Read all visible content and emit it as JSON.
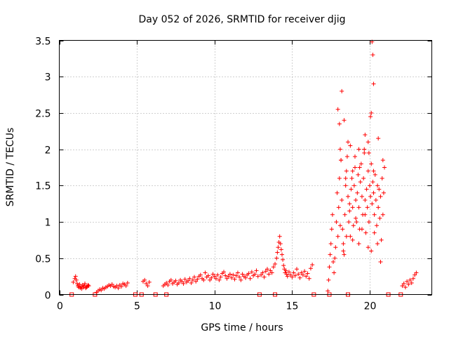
{
  "chart_data": {
    "type": "scatter",
    "title": "Day 052 of 2026, SRMTID for receiver djig",
    "xlabel": "GPS time / hours",
    "ylabel": "SRMTID / TECUs",
    "xlim": [
      0,
      24
    ],
    "ylim": [
      0,
      3.5
    ],
    "xticks": [
      0,
      5,
      10,
      15,
      20
    ],
    "yticks": [
      0,
      0.5,
      1,
      1.5,
      2,
      2.5,
      3,
      3.5
    ],
    "xtick_labels": [
      "0",
      "5",
      "10",
      "15",
      "20"
    ],
    "ytick_labels": [
      "0",
      "0.5",
      "1",
      "1.5",
      "2",
      "2.5",
      "3",
      "3.5"
    ],
    "grid": true,
    "color": "#ff0000",
    "series": [
      {
        "name": "SRMTID",
        "marker": "plus",
        "x": [
          0.9,
          1.0,
          1.05,
          1.1,
          1.15,
          1.2,
          1.25,
          1.3,
          1.35,
          1.4,
          1.45,
          1.5,
          1.55,
          1.6,
          1.65,
          1.7,
          1.75,
          1.8,
          1.85,
          1.9,
          2.4,
          2.5,
          2.6,
          2.7,
          2.8,
          2.9,
          3.0,
          3.1,
          3.2,
          3.3,
          3.4,
          3.5,
          3.6,
          3.7,
          3.8,
          3.9,
          4.0,
          4.1,
          4.2,
          4.3,
          4.4,
          5.4,
          5.5,
          5.6,
          5.7,
          5.8,
          6.7,
          6.8,
          6.9,
          7.0,
          7.1,
          7.2,
          7.3,
          7.4,
          7.5,
          7.6,
          7.7,
          7.8,
          7.9,
          8.0,
          8.1,
          8.2,
          8.3,
          8.4,
          8.5,
          8.6,
          8.7,
          8.8,
          8.9,
          9.0,
          9.1,
          9.2,
          9.3,
          9.4,
          9.5,
          9.6,
          9.7,
          9.8,
          9.9,
          10.0,
          10.1,
          10.2,
          10.3,
          10.4,
          10.5,
          10.6,
          10.7,
          10.8,
          10.9,
          11.0,
          11.1,
          11.2,
          11.3,
          11.4,
          11.5,
          11.6,
          11.7,
          11.8,
          11.9,
          12.0,
          12.1,
          12.2,
          12.3,
          12.4,
          12.5,
          12.6,
          12.7,
          12.8,
          13.0,
          13.1,
          13.2,
          13.3,
          13.4,
          13.5,
          13.6,
          13.7,
          13.8,
          13.9,
          14.0,
          14.05,
          14.1,
          14.15,
          14.2,
          14.25,
          14.3,
          14.35,
          14.4,
          14.45,
          14.5,
          14.55,
          14.6,
          14.65,
          14.7,
          14.8,
          14.9,
          15.0,
          15.1,
          15.2,
          15.3,
          15.4,
          15.5,
          15.6,
          15.7,
          15.8,
          15.9,
          16.0,
          16.1,
          16.2,
          16.3,
          17.3,
          17.35,
          17.4,
          17.45,
          17.5,
          17.55,
          17.6,
          17.65,
          17.7,
          17.75,
          17.8,
          17.85,
          17.9,
          17.95,
          18.0,
          18.05,
          18.1,
          18.15,
          18.2,
          18.25,
          18.3,
          18.35,
          18.4,
          18.45,
          18.5,
          18.55,
          18.6,
          18.65,
          18.7,
          18.75,
          18.8,
          18.85,
          18.9,
          18.95,
          19.0,
          19.05,
          19.1,
          19.15,
          19.2,
          19.25,
          19.3,
          19.35,
          19.4,
          19.45,
          19.5,
          19.55,
          19.6,
          19.65,
          19.7,
          19.75,
          19.8,
          19.85,
          19.9,
          19.95,
          20.0,
          20.05,
          20.1,
          20.15,
          20.2,
          20.25,
          20.3,
          20.35,
          20.4,
          20.45,
          20.5,
          20.55,
          20.6,
          20.65,
          20.7,
          20.75,
          20.8,
          20.85,
          20.9,
          20.95,
          17.95,
          18.05,
          18.2,
          18.35,
          18.6,
          18.9,
          19.3,
          19.7,
          20.1,
          20.15,
          20.2,
          20.25,
          20.05,
          19.9,
          18.1,
          18.3,
          18.5,
          18.7,
          18.9,
          19.1,
          19.3,
          19.5,
          19.7,
          19.9,
          20.1,
          20.3,
          20.5,
          20.7,
          18.15,
          18.45,
          18.75,
          19.05,
          19.35,
          19.65,
          19.95,
          20.25,
          20.55,
          20.85,
          22.1,
          22.2,
          22.3,
          22.4,
          22.5,
          22.6,
          22.7,
          22.8,
          22.9,
          23.0
        ],
        "y": [
          0.17,
          0.22,
          0.25,
          0.2,
          0.15,
          0.12,
          0.1,
          0.14,
          0.09,
          0.11,
          0.08,
          0.13,
          0.1,
          0.12,
          0.15,
          0.09,
          0.1,
          0.11,
          0.13,
          0.12,
          0.03,
          0.05,
          0.07,
          0.06,
          0.09,
          0.08,
          0.1,
          0.11,
          0.13,
          0.12,
          0.14,
          0.11,
          0.1,
          0.12,
          0.09,
          0.13,
          0.11,
          0.15,
          0.14,
          0.12,
          0.16,
          0.18,
          0.2,
          0.15,
          0.12,
          0.17,
          0.12,
          0.14,
          0.16,
          0.13,
          0.18,
          0.2,
          0.15,
          0.17,
          0.19,
          0.14,
          0.16,
          0.2,
          0.18,
          0.15,
          0.21,
          0.17,
          0.19,
          0.22,
          0.16,
          0.2,
          0.24,
          0.18,
          0.21,
          0.25,
          0.27,
          0.22,
          0.2,
          0.3,
          0.24,
          0.26,
          0.2,
          0.23,
          0.28,
          0.25,
          0.22,
          0.27,
          0.2,
          0.24,
          0.29,
          0.31,
          0.26,
          0.22,
          0.25,
          0.28,
          0.23,
          0.27,
          0.21,
          0.26,
          0.3,
          0.24,
          0.2,
          0.28,
          0.25,
          0.23,
          0.27,
          0.29,
          0.22,
          0.31,
          0.26,
          0.28,
          0.33,
          0.25,
          0.27,
          0.3,
          0.24,
          0.32,
          0.35,
          0.28,
          0.33,
          0.3,
          0.38,
          0.42,
          0.5,
          0.58,
          0.65,
          0.72,
          0.8,
          0.7,
          0.62,
          0.55,
          0.48,
          0.4,
          0.35,
          0.3,
          0.33,
          0.28,
          0.25,
          0.31,
          0.27,
          0.24,
          0.3,
          0.26,
          0.35,
          0.28,
          0.23,
          0.3,
          0.27,
          0.32,
          0.25,
          0.29,
          0.22,
          0.36,
          0.41,
          0.05,
          0.2,
          0.38,
          0.55,
          0.7,
          0.9,
          1.1,
          0.45,
          0.3,
          0.5,
          0.65,
          1.0,
          1.4,
          0.8,
          1.2,
          1.6,
          2.0,
          1.85,
          1.3,
          0.9,
          0.7,
          0.55,
          1.1,
          1.5,
          1.7,
          1.9,
          1.35,
          1.0,
          1.25,
          0.8,
          1.45,
          1.6,
          1.2,
          0.95,
          1.5,
          1.75,
          1.3,
          1.0,
          1.4,
          1.65,
          1.2,
          0.9,
          1.55,
          1.8,
          1.35,
          1.1,
          1.6,
          1.95,
          1.3,
          0.85,
          1.45,
          1.2,
          1.7,
          1.0,
          1.5,
          1.35,
          1.8,
          1.25,
          1.55,
          1.4,
          1.1,
          1.65,
          1.3,
          0.95,
          1.5,
          1.2,
          1.45,
          1.05,
          1.35,
          0.75,
          1.6,
          1.1,
          1.4,
          1.75,
          2.55,
          2.35,
          2.8,
          2.4,
          2.1,
          1.7,
          2.0,
          2.2,
          2.5,
          3.48,
          3.3,
          2.9,
          2.45,
          2.1,
          0.95,
          0.6,
          0.8,
          1.15,
          0.75,
          1.05,
          0.7,
          0.9,
          1.1,
          0.65,
          0.6,
          0.85,
          0.7,
          0.45,
          1.85,
          1.6,
          2.05,
          1.9,
          1.75,
          2.0,
          1.95,
          1.7,
          2.15,
          1.85,
          0.12,
          0.15,
          0.1,
          0.18,
          0.14,
          0.2,
          0.16,
          0.22,
          0.27,
          0.3
        ],
        "zero_boxes_x": [
          0.8,
          2.3,
          4.9,
          5.3,
          6.2,
          6.9,
          12.9,
          13.9,
          16.4,
          17.4,
          18.6,
          21.2,
          22.0
        ]
      }
    ]
  }
}
